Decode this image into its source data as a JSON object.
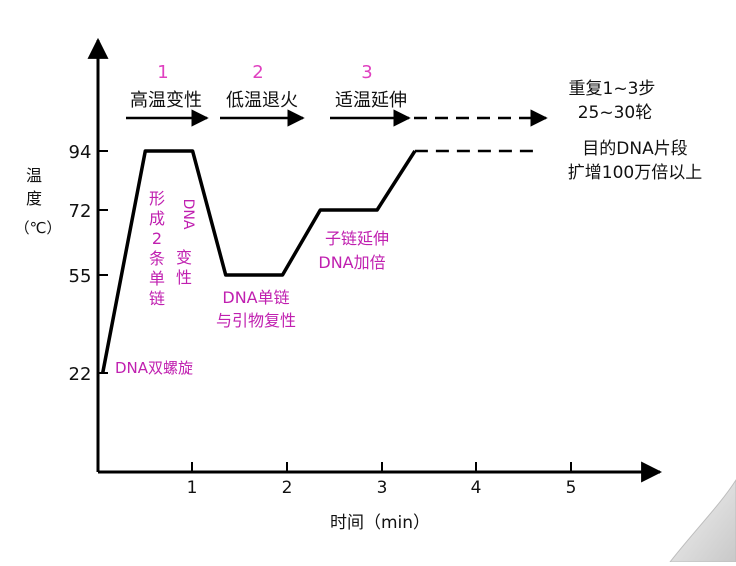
{
  "chart_data": {
    "type": "line",
    "title": "",
    "xlabel": "时间（min）",
    "ylabel": "温\n度\n（℃）",
    "ylabel_lines": [
      "温",
      "度",
      "（℃）"
    ],
    "x_ticks": [
      "1",
      "2",
      "3",
      "4",
      "5"
    ],
    "y_ticks": [
      "94",
      "72",
      "55",
      "22"
    ],
    "xlim": [
      0,
      5.8
    ],
    "ylim_note": "non-linear temperature axis; only labelled levels shown",
    "series": [
      {
        "name": "",
        "points": [
          {
            "x": 0.05,
            "y": 22
          },
          {
            "x": 0.5,
            "y": 94
          },
          {
            "x": 1.0,
            "y": 94
          },
          {
            "x": 1.35,
            "y": 55
          },
          {
            "x": 1.95,
            "y": 55
          },
          {
            "x": 2.35,
            "y": 72
          },
          {
            "x": 2.95,
            "y": 72
          },
          {
            "x": 3.35,
            "y": 94
          }
        ],
        "dashed_continuation": {
          "x": [
            3.35,
            4.6
          ],
          "y": 94
        }
      }
    ],
    "steps": [
      {
        "number": "1",
        "label": "高温变性"
      },
      {
        "number": "2",
        "label": "低温退火"
      },
      {
        "number": "3",
        "label": "适温延伸"
      }
    ],
    "repeat_note": [
      "重复1~3步",
      "25~30轮"
    ],
    "result_note": [
      "目的DNA片段",
      "扩增100万倍以上"
    ],
    "annotations": {
      "dna_double_helix": "DNA双螺旋",
      "form_two_strands": [
        "形",
        "成",
        "2",
        "条",
        "单",
        "链"
      ],
      "dna_denaturation": [
        "DNA",
        "变",
        "性"
      ],
      "single_strand_primer": [
        "DNA单链",
        "与引物复性"
      ],
      "daughter_extension": [
        "子链延伸",
        "DNA加倍"
      ]
    },
    "colors": {
      "axis": "#000000",
      "curve": "#000000",
      "step_number": "#e040c0",
      "annotation": "#c020b0",
      "text": "#111111",
      "page_curl": "#d8d8d8"
    }
  }
}
